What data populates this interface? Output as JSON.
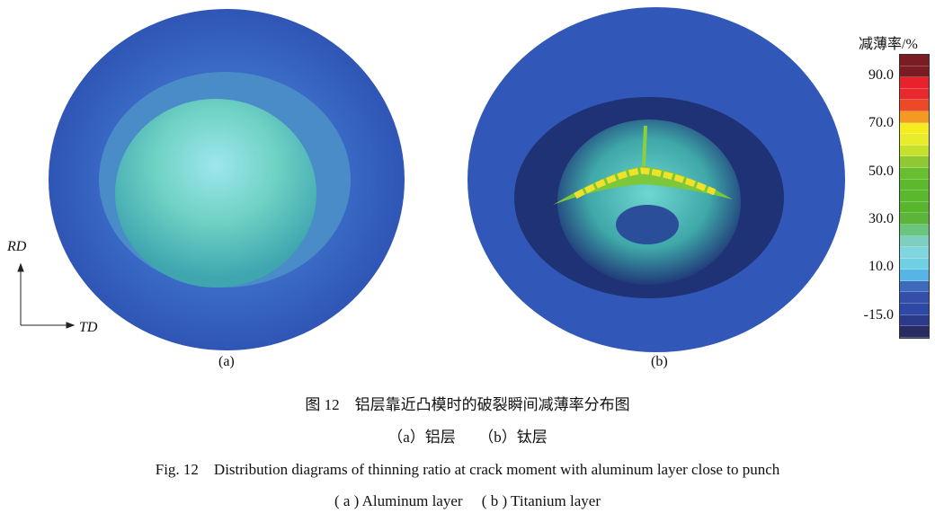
{
  "figure": {
    "panel_labels": [
      "(a)",
      "(b)"
    ],
    "axes": {
      "vertical": "RD",
      "horizontal": "TD"
    },
    "colorbar": {
      "title": "减薄率/%",
      "ticks": [
        "90.0",
        "70.0",
        "50.0",
        "30.0",
        "10.0",
        "-15.0"
      ],
      "colors": [
        "#7a1c22",
        "#7a1c22",
        "#e8212b",
        "#e82a2e",
        "#ec4a26",
        "#f29a22",
        "#f5ec1f",
        "#e9ec2a",
        "#c6e02e",
        "#8ec833",
        "#67be2f",
        "#5cb92d",
        "#5ab82c",
        "#58b62d",
        "#5bb53a",
        "#6ac57e",
        "#7dd0c0",
        "#7fd6e0",
        "#6fd0e4",
        "#55b6e6",
        "#3f69bb",
        "#354ea9",
        "#2e48a6",
        "#2b3a8a",
        "#282c62"
      ]
    },
    "colors": {
      "sheet": "#2f55b8",
      "dome": "#6fd2c8",
      "crack": "#f0e22a"
    }
  },
  "caption": {
    "zh_title": "图 12　铝层靠近凸模时的破裂瞬间减薄率分布图",
    "zh_sub": "（a）铝层　　（b）钛层",
    "en_title": "Fig. 12　Distribution diagrams of thinning ratio at crack moment with aluminum layer close to punch",
    "en_sub": "( a ) Aluminum layer　 ( b ) Titanium layer"
  }
}
